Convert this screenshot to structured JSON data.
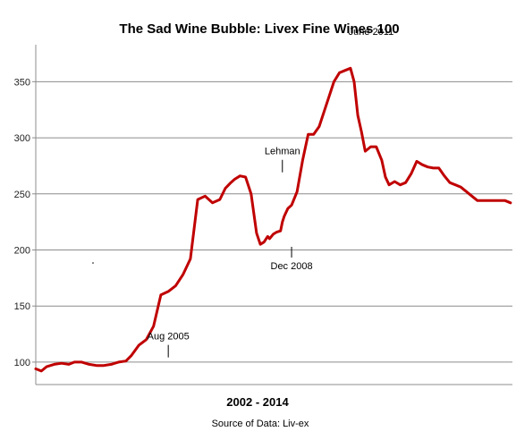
{
  "chart_data": {
    "type": "line",
    "title": "The Sad Wine Bubble: Livex Fine Wines 100",
    "xlabel": "2002 - 2014",
    "ylabel": "",
    "source": "Source of Data: Liv-ex",
    "ylim": [
      80,
      375
    ],
    "xlim": [
      2002.0,
      2014.95
    ],
    "yticks": [
      100,
      150,
      200,
      250,
      300,
      350
    ],
    "grid": "horizontal",
    "legend": "none",
    "series": [
      {
        "color": "#c00000",
        "x": [
          2002.0,
          2002.15,
          2002.3,
          2002.5,
          2002.7,
          2002.9,
          2003.05,
          2003.25,
          2003.45,
          2003.65,
          2003.85,
          2004.05,
          2004.25,
          2004.45,
          2004.6,
          2004.8,
          2005.0,
          2005.2,
          2005.4,
          2005.6,
          2005.8,
          2006.0,
          2006.2,
          2006.4,
          2006.6,
          2006.8,
          2007.0,
          2007.15,
          2007.3,
          2007.4,
          2007.55,
          2007.7,
          2007.85,
          2008.0,
          2008.1,
          2008.2,
          2008.3,
          2008.35,
          2008.45,
          2008.55,
          2008.65,
          2008.7,
          2008.75,
          2008.85,
          2008.95,
          2009.1,
          2009.25,
          2009.4,
          2009.55,
          2009.7,
          2009.85,
          2010.0,
          2010.1,
          2010.25,
          2010.4,
          2010.55,
          2010.65,
          2010.75,
          2010.85,
          2010.95,
          2011.1,
          2011.25,
          2011.4,
          2011.5,
          2011.6,
          2011.75,
          2011.9,
          2012.05,
          2012.2,
          2012.35,
          2012.5,
          2012.65,
          2012.8,
          2012.95,
          2013.1,
          2013.25,
          2013.4,
          2013.55,
          2013.7,
          2013.85,
          2014.0,
          2014.15,
          2014.3,
          2014.45,
          2014.6,
          2014.75,
          2014.9
        ],
        "y": [
          94,
          92,
          96,
          98,
          99,
          98,
          100,
          100,
          98,
          97,
          97,
          98,
          100,
          101,
          106,
          115,
          120,
          132,
          160,
          163,
          168,
          178,
          192,
          245,
          248,
          242,
          245,
          255,
          260,
          263,
          266,
          265,
          250,
          215,
          205,
          207,
          212,
          210,
          214,
          216,
          217,
          225,
          230,
          237,
          240,
          252,
          280,
          303,
          303,
          310,
          325,
          340,
          350,
          358,
          360,
          362,
          350,
          320,
          305,
          288,
          292,
          292,
          280,
          265,
          258,
          261,
          258,
          260,
          268,
          279,
          276,
          274,
          273,
          273,
          266,
          260,
          258,
          256,
          252,
          248,
          244,
          244,
          244,
          244,
          244,
          244,
          242
        ]
      }
    ],
    "annotations": [
      {
        "label": "Aug 2005",
        "x": 2005.6,
        "y": 101
      },
      {
        "label": "Lehman",
        "x": 2008.7,
        "y": 266
      },
      {
        "label": "Dec 2008",
        "x": 2008.95,
        "y": 206
      },
      {
        "label": "June 2011",
        "x": 2011.45,
        "y": 364
      }
    ]
  }
}
